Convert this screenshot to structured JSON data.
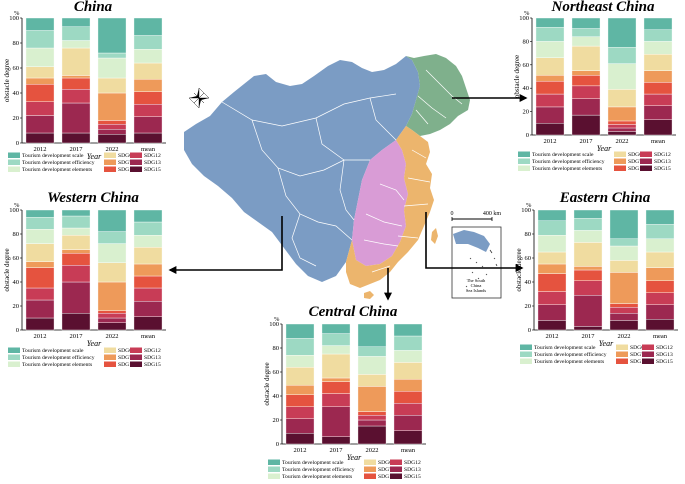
{
  "colors": {
    "SDG1": "#5fb6a4",
    "SDG2": "#9dd9c3",
    "SDG3": "#d9f0cf",
    "SDG6": "#f0dca0",
    "SDG7": "#ee9a5a",
    "SDG11": "#e5533f",
    "SDG12": "#c83c56",
    "SDG13": "#9c2850",
    "SDG15": "#5a1030",
    "map_west": "#7b9cc4",
    "map_northeast": "#7fb08c",
    "map_east": "#ecb56d",
    "map_central": "#d99cd6"
  },
  "map": {
    "scale_zero": "0",
    "scale_dist": "400 km",
    "inset_label_1": "The South",
    "inset_label_2": "China",
    "inset_label_3": "Sea Islands"
  },
  "chart_data": [
    {
      "type": "bar",
      "title": "China",
      "xlabel": "Year",
      "ylabel": "obstacle degree",
      "unit": "%",
      "ylim": [
        0,
        100
      ],
      "yticks": [
        0,
        20,
        40,
        60,
        80,
        100
      ],
      "categories": [
        "2012",
        "2017",
        "2022",
        "mean"
      ],
      "legend": [
        {
          "key": "SDG1",
          "label": "Tourism development scale"
        },
        {
          "key": "SDG6",
          "label": "SDG6"
        },
        {
          "key": "SDG12",
          "label": "SDG12"
        },
        {
          "key": "SDG2",
          "label": "Tourism development efficiency"
        },
        {
          "key": "SDG7",
          "label": "SDG7"
        },
        {
          "key": "SDG13",
          "label": "SDG13"
        },
        {
          "key": "SDG3",
          "label": "Tourism development elements"
        },
        {
          "key": "SDG11",
          "label": "SDG11"
        },
        {
          "key": "SDG15",
          "label": "SDG15"
        }
      ],
      "series": [
        {
          "key": "SDG15",
          "values": [
            8,
            8,
            7,
            8
          ]
        },
        {
          "key": "SDG13",
          "values": [
            14,
            24,
            4,
            13
          ]
        },
        {
          "key": "SDG12",
          "values": [
            11,
            11,
            4,
            10
          ]
        },
        {
          "key": "SDG11",
          "values": [
            14,
            9,
            3,
            10
          ]
        },
        {
          "key": "SDG7",
          "values": [
            5,
            2,
            22,
            10
          ]
        },
        {
          "key": "SDG6",
          "values": [
            9,
            22,
            12,
            13
          ]
        },
        {
          "key": "SDG3",
          "values": [
            15,
            6,
            16,
            11
          ]
        },
        {
          "key": "SDG2",
          "values": [
            14,
            11,
            4,
            11
          ]
        },
        {
          "key": "SDG1",
          "values": [
            10,
            7,
            28,
            14
          ]
        }
      ]
    },
    {
      "type": "bar",
      "title": "Northeast China",
      "xlabel": "Year",
      "ylabel": "obstacle degree",
      "unit": "%",
      "ylim": [
        0,
        100
      ],
      "yticks": [
        0,
        20,
        40,
        60,
        80,
        100
      ],
      "categories": [
        "2012",
        "2017",
        "2022",
        "mean"
      ],
      "legend": [
        {
          "key": "SDG1",
          "label": "Tourism development scale"
        },
        {
          "key": "SDG6",
          "label": "SDG6"
        },
        {
          "key": "SDG12",
          "label": "SDG12"
        },
        {
          "key": "SDG2",
          "label": "Tourism development efficiency"
        },
        {
          "key": "SDG7",
          "label": "SDG7"
        },
        {
          "key": "SDG13",
          "label": "SDG13"
        },
        {
          "key": "SDG3",
          "label": "Tourism development elements"
        },
        {
          "key": "SDG11",
          "label": "SDG11"
        },
        {
          "key": "SDG15",
          "label": "SDG15"
        }
      ],
      "series": [
        {
          "key": "SDG15",
          "values": [
            10,
            17,
            3,
            13
          ]
        },
        {
          "key": "SDG13",
          "values": [
            14,
            14,
            3,
            12
          ]
        },
        {
          "key": "SDG12",
          "values": [
            11,
            11,
            3,
            10
          ]
        },
        {
          "key": "SDG11",
          "values": [
            11,
            9,
            3,
            10
          ]
        },
        {
          "key": "SDG7",
          "values": [
            5,
            4,
            12,
            10
          ]
        },
        {
          "key": "SDG6",
          "values": [
            15,
            21,
            15,
            14
          ]
        },
        {
          "key": "SDG3",
          "values": [
            14,
            8,
            22,
            11
          ]
        },
        {
          "key": "SDG2",
          "values": [
            12,
            7,
            14,
            10
          ]
        },
        {
          "key": "SDG1",
          "values": [
            8,
            9,
            25,
            10
          ]
        }
      ]
    },
    {
      "type": "bar",
      "title": "Western China",
      "xlabel": "Year",
      "ylabel": "obstacle degree",
      "unit": "%",
      "ylim": [
        0,
        100
      ],
      "yticks": [
        0,
        20,
        40,
        60,
        80,
        100
      ],
      "categories": [
        "2012",
        "2017",
        "2022",
        "mean"
      ],
      "legend": [
        {
          "key": "SDG1",
          "label": "Tourism development scale"
        },
        {
          "key": "SDG6",
          "label": "SDG6"
        },
        {
          "key": "SDG12",
          "label": "SDG12"
        },
        {
          "key": "SDG2",
          "label": "Tourism development efficiency"
        },
        {
          "key": "SDG7",
          "label": "SDG7"
        },
        {
          "key": "SDG13",
          "label": "SDG13"
        },
        {
          "key": "SDG3",
          "label": "Tourism development elements"
        },
        {
          "key": "SDG11",
          "label": "SDG11"
        },
        {
          "key": "SDG15",
          "label": "SDG15"
        }
      ],
      "series": [
        {
          "key": "SDG15",
          "values": [
            10,
            14,
            6,
            11
          ]
        },
        {
          "key": "SDG13",
          "values": [
            15,
            26,
            4,
            13
          ]
        },
        {
          "key": "SDG12",
          "values": [
            10,
            14,
            4,
            11
          ]
        },
        {
          "key": "SDG11",
          "values": [
            17,
            10,
            2,
            10
          ]
        },
        {
          "key": "SDG7",
          "values": [
            5,
            3,
            24,
            10
          ]
        },
        {
          "key": "SDG6",
          "values": [
            15,
            12,
            16,
            14
          ]
        },
        {
          "key": "SDG3",
          "values": [
            12,
            6,
            16,
            10
          ]
        },
        {
          "key": "SDG2",
          "values": [
            10,
            10,
            10,
            11
          ]
        },
        {
          "key": "SDG1",
          "values": [
            6,
            5,
            18,
            10
          ]
        }
      ]
    },
    {
      "type": "bar",
      "title": "Eastern China",
      "xlabel": "Year",
      "ylabel": "obstacle degree",
      "unit": "%",
      "ylim": [
        0,
        100
      ],
      "yticks": [
        0,
        20,
        40,
        60,
        80,
        100
      ],
      "categories": [
        "2012",
        "2017",
        "2022",
        "mean"
      ],
      "legend": [
        {
          "key": "SDG1",
          "label": "Tourism development scale"
        },
        {
          "key": "SDG6",
          "label": "SDG6"
        },
        {
          "key": "SDG12",
          "label": "SDG12"
        },
        {
          "key": "SDG2",
          "label": "Tourism development efficiency"
        },
        {
          "key": "SDG7",
          "label": "SDG7"
        },
        {
          "key": "SDG13",
          "label": "SDG13"
        },
        {
          "key": "SDG3",
          "label": "Tourism development elements"
        },
        {
          "key": "SDG11",
          "label": "SDG11"
        },
        {
          "key": "SDG15",
          "label": "SDG15"
        }
      ],
      "series": [
        {
          "key": "SDG15",
          "values": [
            8,
            3,
            8,
            9
          ]
        },
        {
          "key": "SDG13",
          "values": [
            13,
            26,
            6,
            12
          ]
        },
        {
          "key": "SDG12",
          "values": [
            11,
            12,
            5,
            10
          ]
        },
        {
          "key": "SDG11",
          "values": [
            15,
            9,
            3,
            10
          ]
        },
        {
          "key": "SDG7",
          "values": [
            8,
            3,
            26,
            11
          ]
        },
        {
          "key": "SDG6",
          "values": [
            10,
            20,
            10,
            13
          ]
        },
        {
          "key": "SDG3",
          "values": [
            14,
            10,
            12,
            11
          ]
        },
        {
          "key": "SDG2",
          "values": [
            12,
            10,
            6,
            12
          ]
        },
        {
          "key": "SDG1",
          "values": [
            9,
            7,
            24,
            12
          ]
        }
      ]
    },
    {
      "type": "bar",
      "title": "Central China",
      "xlabel": "Year",
      "ylabel": "obstacle degree",
      "unit": "%",
      "ylim": [
        0,
        100
      ],
      "yticks": [
        0,
        20,
        40,
        60,
        80,
        100
      ],
      "categories": [
        "2012",
        "2017",
        "2022",
        "mean"
      ],
      "legend": [
        {
          "key": "SDG1",
          "label": "Tourism development scale"
        },
        {
          "key": "SDG6",
          "label": "SDG6"
        },
        {
          "key": "SDG12",
          "label": "SDG12"
        },
        {
          "key": "SDG2",
          "label": "Tourism development efficiency"
        },
        {
          "key": "SDG7",
          "label": "SDG7"
        },
        {
          "key": "SDG13",
          "label": "SDG13"
        },
        {
          "key": "SDG3",
          "label": "Tourism development elements"
        },
        {
          "key": "SDG11",
          "label": "SDG11"
        },
        {
          "key": "SDG15",
          "label": "SDG15"
        }
      ],
      "series": [
        {
          "key": "SDG15",
          "values": [
            9,
            6,
            15,
            11
          ]
        },
        {
          "key": "SDG13",
          "values": [
            12,
            25,
            5,
            13
          ]
        },
        {
          "key": "SDG12",
          "values": [
            10,
            11,
            4,
            10
          ]
        },
        {
          "key": "SDG11",
          "values": [
            10,
            10,
            3,
            10
          ]
        },
        {
          "key": "SDG7",
          "values": [
            8,
            3,
            21,
            10
          ]
        },
        {
          "key": "SDG6",
          "values": [
            15,
            20,
            10,
            14
          ]
        },
        {
          "key": "SDG3",
          "values": [
            10,
            7,
            15,
            10
          ]
        },
        {
          "key": "SDG2",
          "values": [
            14,
            10,
            8,
            12
          ]
        },
        {
          "key": "SDG1",
          "values": [
            12,
            8,
            19,
            10
          ]
        }
      ]
    }
  ]
}
